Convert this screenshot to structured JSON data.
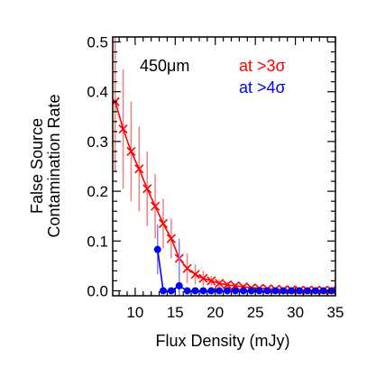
{
  "chart_data": {
    "type": "line",
    "title": "",
    "annotation": "450μm",
    "xlabel": "Flux Density (mJy)",
    "ylabel_lines": [
      "False Source",
      "Contamination Rate"
    ],
    "xlim": [
      7.2,
      35
    ],
    "ylim": [
      -0.01,
      0.51
    ],
    "xticks": [
      10,
      15,
      20,
      25,
      30,
      35
    ],
    "yticks": [
      0.0,
      0.1,
      0.2,
      0.3,
      0.4,
      0.5
    ],
    "ytick_labels": [
      "0.0",
      "0.1",
      "0.2",
      "0.3",
      "0.4",
      "0.5"
    ],
    "grid": false,
    "legend_position": "top-right",
    "series": [
      {
        "name": "at >3σ",
        "color": "#ff0000",
        "errbar_color": "#f08080",
        "marker": "x",
        "x": [
          7.5,
          8.5,
          9.5,
          10.5,
          11.5,
          12.5,
          13.5,
          14.5,
          15.5,
          16.5,
          17.5,
          18.5,
          19.5,
          20.5,
          21.5,
          22.5,
          23.5,
          24.5,
          25.5,
          26.5,
          27.5,
          28.5,
          29.5,
          30.5,
          31.5,
          32.5,
          33.5,
          34.5
        ],
        "y": [
          0.38,
          0.325,
          0.28,
          0.245,
          0.205,
          0.17,
          0.135,
          0.105,
          0.065,
          0.045,
          0.033,
          0.025,
          0.02,
          0.015,
          0.012,
          0.01,
          0.008,
          0.006,
          0.005,
          0.004,
          0.003,
          0.002,
          0.002,
          0.001,
          0.001,
          0.001,
          0.001,
          0.001
        ],
        "yerr": [
          0.14,
          0.12,
          0.1,
          0.085,
          0.075,
          0.065,
          0.05,
          0.04,
          0.04,
          0.03,
          0.02,
          0.015,
          0.01,
          0.008,
          0.006,
          0.005,
          0.004,
          0.003,
          0.003,
          0.002,
          0.002,
          0.002,
          0.001,
          0.001,
          0.001,
          0.001,
          0.001,
          0.001
        ]
      },
      {
        "name": "at >4σ",
        "color": "#0000ff",
        "errbar_color": "#8080ff",
        "marker": "circle",
        "x": [
          12.8,
          13.5,
          14.5,
          15.5,
          16.5,
          17.5,
          18.5,
          19.5,
          20.5,
          21.5,
          22.5,
          23.5,
          24.5,
          25.5,
          26.5,
          27.5,
          28.5,
          29.5,
          30.5,
          31.5,
          32.5,
          33.5,
          34.5
        ],
        "y": [
          0.083,
          0.0,
          0.0,
          0.01,
          0.0,
          0.0,
          0.0,
          0.0,
          0.0,
          0.0,
          0.0,
          0.0,
          0.0,
          0.0,
          0.0,
          0.0,
          0.0,
          0.0,
          0.0,
          0.0,
          0.0,
          0.0,
          0.0
        ],
        "yerr": [
          0.05,
          0.0,
          0.0,
          0.09,
          0.0,
          0.0,
          0.0,
          0.0,
          0.0,
          0.0,
          0.0,
          0.0,
          0.0,
          0.0,
          0.0,
          0.0,
          0.0,
          0.0,
          0.0,
          0.0,
          0.0,
          0.0,
          0.0
        ]
      }
    ]
  }
}
